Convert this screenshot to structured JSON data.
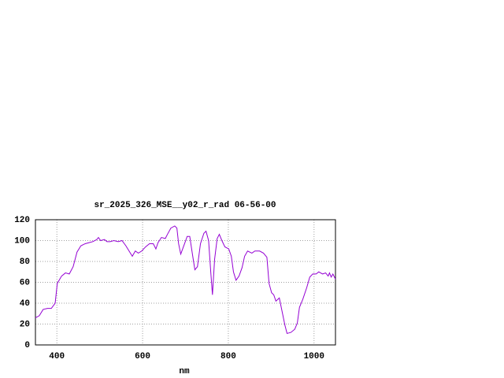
{
  "chart_data": {
    "type": "line",
    "title": "sr_2025_326_MSE__y02_r_rad 06-56-00",
    "x_label": "nm",
    "x": [
      350,
      359,
      368,
      378,
      387,
      396,
      401,
      411,
      420,
      429,
      438,
      447,
      456,
      466,
      475,
      484,
      493,
      497,
      502,
      511,
      517,
      524,
      533,
      543,
      552,
      561,
      570,
      576,
      583,
      590,
      598,
      607,
      616,
      625,
      631,
      636,
      644,
      653,
      658,
      666,
      675,
      680,
      684,
      689,
      697,
      704,
      710,
      717,
      722,
      728,
      735,
      743,
      748,
      754,
      759,
      763,
      768,
      774,
      779,
      785,
      792,
      801,
      807,
      812,
      818,
      825,
      832,
      838,
      845,
      855,
      862,
      873,
      882,
      890,
      895,
      901,
      906,
      911,
      919,
      924,
      932,
      937,
      946,
      955,
      961,
      966,
      974,
      983,
      990,
      997,
      1005,
      1011,
      1020,
      1027,
      1033,
      1036,
      1040,
      1044,
      1050
    ],
    "series": [
      {
        "name": "r_rad",
        "color": "#9400d3",
        "values": [
          26,
          28,
          34,
          35,
          35,
          40,
          59,
          66,
          69,
          68,
          75,
          89,
          95,
          97,
          98,
          99,
          101,
          103,
          100,
          101,
          99,
          99,
          100,
          99,
          100,
          95,
          89,
          85,
          90,
          88,
          90,
          94,
          97,
          97,
          92,
          98,
          103,
          102,
          106,
          112,
          114,
          112,
          97,
          87,
          96,
          104,
          104,
          85,
          72,
          75,
          97,
          107,
          109,
          100,
          70,
          48,
          82,
          102,
          106,
          100,
          94,
          92,
          85,
          70,
          62,
          66,
          74,
          85,
          90,
          88,
          90,
          90,
          88,
          84,
          59,
          50,
          48,
          42,
          45,
          35,
          19,
          11,
          12,
          15,
          21,
          36,
          44,
          55,
          65,
          68,
          68,
          70,
          68,
          69,
          66,
          69,
          65,
          68,
          63
        ]
      }
    ],
    "xlim": [
      350,
      1050
    ],
    "ylim": [
      0,
      120
    ],
    "xticks": [
      400,
      600,
      800,
      1000
    ],
    "yticks": [
      0,
      20,
      40,
      60,
      80,
      100,
      120
    ],
    "grid": true
  }
}
